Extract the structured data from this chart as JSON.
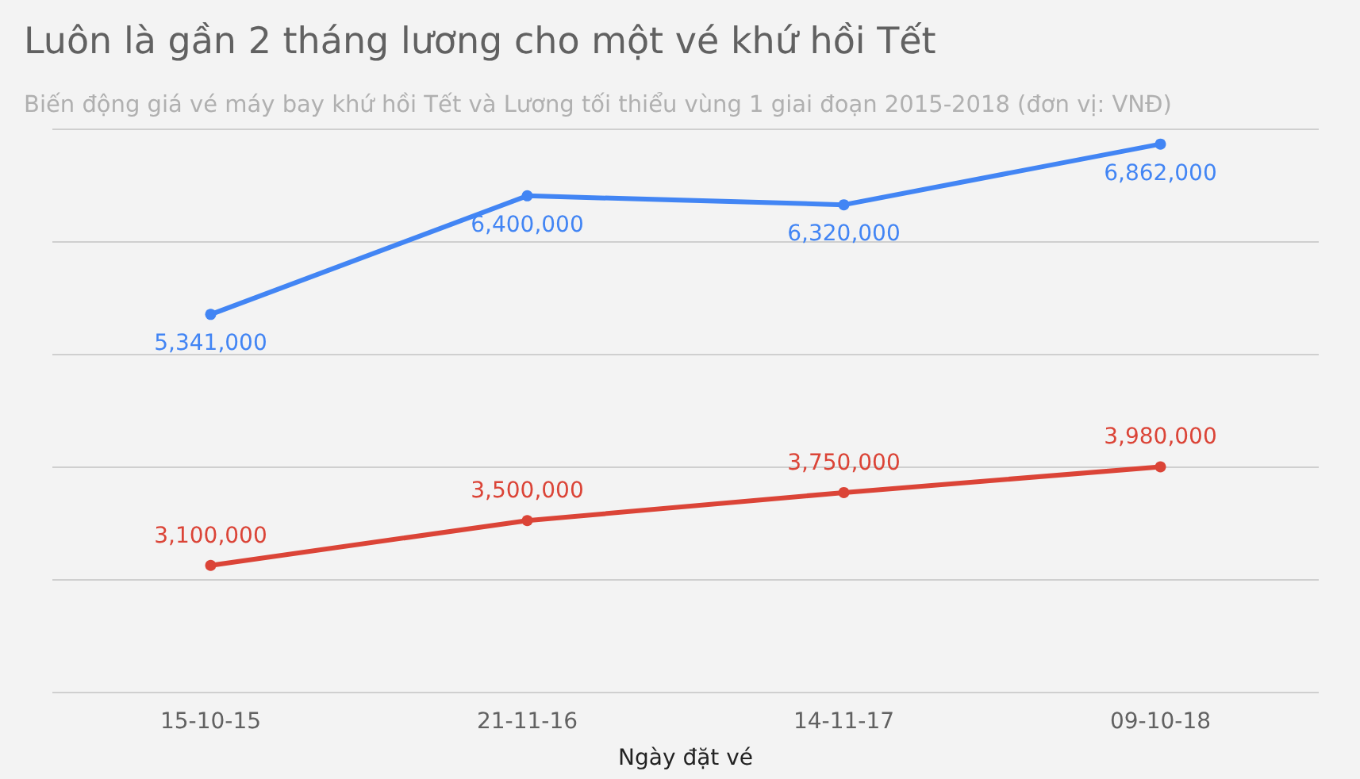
{
  "chart_data": {
    "type": "line",
    "title": "Luôn là gần 2 tháng lương cho một vé khứ hồi Tết",
    "subtitle": "Biến động giá vé máy bay khứ hồi Tết và Lương tối thiểu vùng 1 giai đoạn 2015-2018 (đơn vị: VNĐ)",
    "xlabel": "Ngày đặt vé",
    "categories": [
      "15-10-15",
      "21-11-16",
      "14-11-17",
      "09-10-18"
    ],
    "series": [
      {
        "color": "#4285f4",
        "values": [
          5341000,
          6400000,
          6320000,
          6862000
        ],
        "value_labels": [
          "5,341,000",
          "6,400,000",
          "6,320,000",
          "6,862,000"
        ]
      },
      {
        "color": "#db4437",
        "values": [
          3100000,
          3500000,
          3750000,
          3980000
        ],
        "value_labels": [
          "3,100,000",
          "3,500,000",
          "3,750,000",
          "3,980,000"
        ]
      }
    ],
    "tick_labels": "x",
    "grid": "y",
    "marker": "circle",
    "line_style": "solid"
  }
}
